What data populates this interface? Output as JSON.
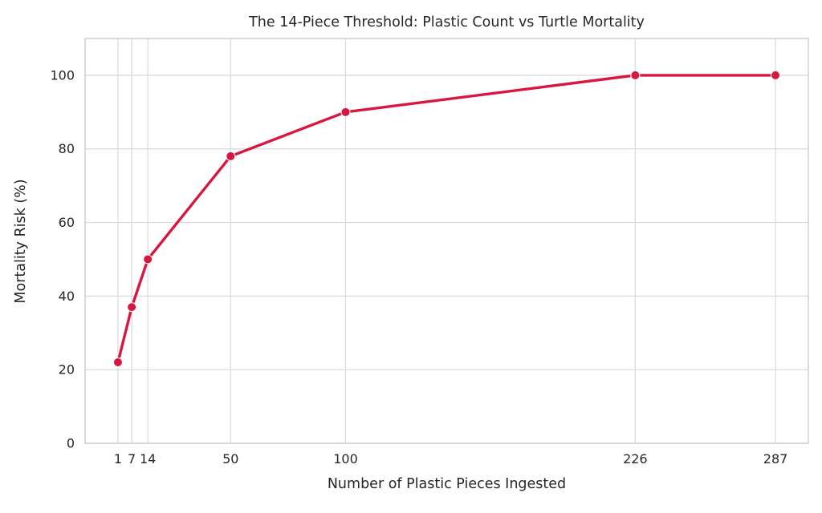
{
  "chart_data": {
    "type": "line",
    "title": "The 14-Piece Threshold: Plastic Count vs Turtle Mortality",
    "xlabel": "Number of Plastic Pieces Ingested",
    "ylabel": "Mortality Risk (%)",
    "series": [
      {
        "name": "mortality-risk",
        "x": [
          1,
          7,
          14,
          50,
          100,
          226,
          287
        ],
        "y": [
          22,
          37,
          50,
          78,
          90,
          100,
          100
        ]
      }
    ],
    "xticks": [
      1,
      7,
      14,
      50,
      100,
      226,
      287
    ],
    "yticks": [
      0,
      20,
      40,
      60,
      80,
      100
    ],
    "xlim": [
      -13.3,
      301.3
    ],
    "ylim": [
      0,
      110
    ],
    "grid": true,
    "legend": "none",
    "colors": {
      "line": "#d81740",
      "marker": "#d81740",
      "marker_edge": "#ffffff",
      "grid": "#d9d9d9",
      "spine": "#cccccc",
      "text": "#262626",
      "background": "#ffffff"
    }
  }
}
